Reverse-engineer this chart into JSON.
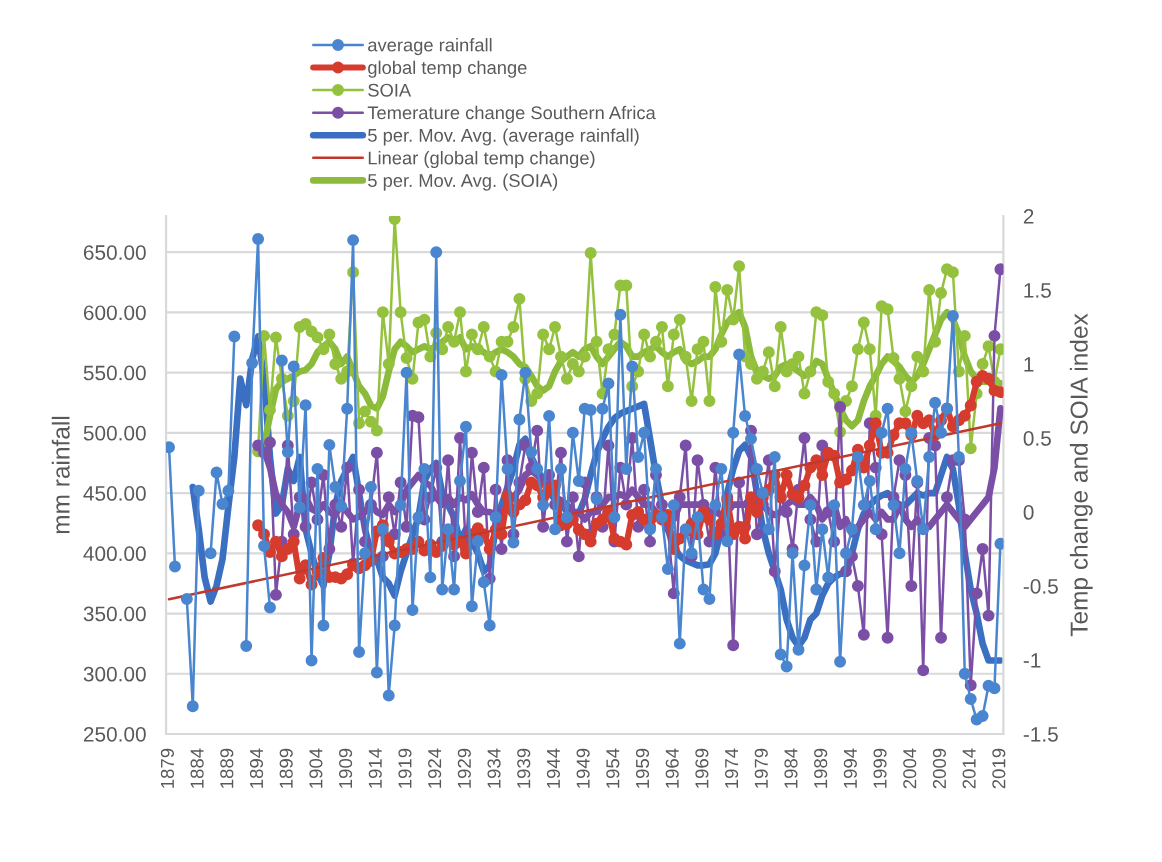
{
  "chart_data": {
    "type": "line",
    "ylabel": "mm rainfall",
    "y2label": "Temp change and SOIA index",
    "grid": "y",
    "legend": "top",
    "x": [
      1879,
      1880,
      1881,
      1882,
      1883,
      1884,
      1885,
      1886,
      1887,
      1888,
      1889,
      1890,
      1891,
      1892,
      1893,
      1894,
      1895,
      1896,
      1897,
      1898,
      1899,
      1900,
      1901,
      1902,
      1903,
      1904,
      1905,
      1906,
      1907,
      1908,
      1909,
      1910,
      1911,
      1912,
      1913,
      1914,
      1915,
      1916,
      1917,
      1918,
      1919,
      1920,
      1921,
      1922,
      1923,
      1924,
      1925,
      1926,
      1927,
      1928,
      1929,
      1930,
      1931,
      1932,
      1933,
      1934,
      1935,
      1936,
      1937,
      1938,
      1939,
      1940,
      1941,
      1942,
      1943,
      1944,
      1945,
      1946,
      1947,
      1948,
      1949,
      1950,
      1951,
      1952,
      1953,
      1954,
      1955,
      1956,
      1957,
      1958,
      1959,
      1960,
      1961,
      1962,
      1963,
      1964,
      1965,
      1966,
      1967,
      1968,
      1969,
      1970,
      1971,
      1972,
      1973,
      1974,
      1975,
      1976,
      1977,
      1978,
      1979,
      1980,
      1981,
      1982,
      1983,
      1984,
      1985,
      1986,
      1987,
      1988,
      1989,
      1990,
      1991,
      1992,
      1993,
      1994,
      1995,
      1996,
      1997,
      1998,
      1999,
      2000,
      2001,
      2002,
      2003,
      2004,
      2005,
      2006,
      2007,
      2008,
      2009,
      2010,
      2011,
      2012,
      2013,
      2014,
      2015,
      2016,
      2017,
      2018,
      2019
    ],
    "xlim": [
      1878.5,
      2019.5
    ],
    "xticks": [
      1879,
      1884,
      1889,
      1894,
      1899,
      1904,
      1909,
      1914,
      1919,
      1924,
      1929,
      1934,
      1939,
      1944,
      1949,
      1954,
      1959,
      1964,
      1969,
      1974,
      1979,
      1984,
      1989,
      1994,
      1999,
      2004,
      2009,
      2014,
      2019
    ],
    "ylim": [
      250,
      680
    ],
    "yticks": [
      {
        "value": 250,
        "label": "250.00"
      },
      {
        "value": 300,
        "label": "300.00"
      },
      {
        "value": 350,
        "label": "350.00"
      },
      {
        "value": 400,
        "label": "400.00"
      },
      {
        "value": 450,
        "label": "450.00"
      },
      {
        "value": 500,
        "label": "500.00"
      },
      {
        "value": 550,
        "label": "550.00"
      },
      {
        "value": 600,
        "label": "600.00"
      },
      {
        "value": 650,
        "label": "650.00"
      }
    ],
    "y2lim": [
      -1.5,
      2
    ],
    "y2ticks": [
      -1.5,
      -1,
      -0.5,
      0,
      0.5,
      1,
      1.5,
      2
    ],
    "series": [
      {
        "name": "average rainfall",
        "color": "#4a86cf",
        "marker": "circle",
        "values": [
          488,
          389,
          null,
          362,
          273,
          452,
          null,
          400,
          467,
          441,
          452,
          580,
          null,
          323,
          558,
          661,
          406,
          355,
          null,
          560,
          484,
          555,
          438,
          523,
          311,
          470,
          340,
          490,
          455,
          439,
          520,
          660,
          318,
          400,
          455,
          301,
          420,
          282,
          340,
          440,
          550,
          353,
          430,
          470,
          380,
          650,
          370,
          420,
          370,
          460,
          505,
          356,
          410,
          376,
          340,
          430,
          548,
          470,
          409,
          511,
          550,
          484,
          470,
          440,
          514,
          420,
          470,
          430,
          500,
          460,
          520,
          519,
          445,
          520,
          541,
          430,
          598,
          470,
          555,
          480,
          500,
          420,
          470,
          430,
          387,
          440,
          325,
          420,
          400,
          430,
          370,
          362,
          440,
          470,
          410,
          500,
          565,
          514,
          495,
          470,
          450,
          420,
          480,
          316,
          306,
          400,
          320,
          390,
          440,
          370,
          420,
          380,
          440,
          310,
          400,
          420,
          480,
          440,
          460,
          420,
          500,
          520,
          440,
          400,
          470,
          500,
          460,
          420,
          480,
          525,
          500,
          520,
          597,
          480,
          300,
          279,
          262,
          265,
          290,
          288,
          408
        ]
      },
      {
        "name": "global temp change",
        "color": "#d63c2e",
        "marker": "circle",
        "axis": "y2",
        "values": [
          null,
          null,
          null,
          null,
          null,
          null,
          null,
          null,
          null,
          null,
          null,
          null,
          null,
          null,
          null,
          -0.09,
          -0.15,
          -0.27,
          -0.2,
          -0.3,
          -0.25,
          -0.2,
          -0.45,
          -0.36,
          -0.49,
          -0.4,
          -0.31,
          -0.44,
          -0.44,
          -0.45,
          -0.42,
          -0.36,
          -0.38,
          -0.36,
          -0.33,
          -0.13,
          -0.09,
          -0.2,
          -0.28,
          -0.27,
          -0.25,
          -0.25,
          -0.2,
          -0.26,
          -0.22,
          -0.27,
          -0.23,
          -0.15,
          -0.22,
          -0.2,
          -0.28,
          -0.15,
          -0.11,
          -0.15,
          -0.25,
          -0.12,
          -0.15,
          0.11,
          0.0,
          0.05,
          0.08,
          0.2,
          0.18,
          0.1,
          0.15,
          0.18,
          -0.09,
          -0.08,
          -0.05,
          -0.12,
          -0.15,
          -0.2,
          -0.08,
          -0.05,
          0.0,
          -0.18,
          -0.2,
          -0.22,
          -0.02,
          0.0,
          -0.05,
          -0.1,
          -0.02,
          -0.05,
          -0.02,
          -0.25,
          -0.18,
          -0.13,
          -0.08,
          -0.15,
          0.0,
          -0.05,
          -0.15,
          -0.08,
          0.08,
          -0.15,
          -0.1,
          -0.18,
          0.1,
          0.0,
          0.1,
          0.15,
          0.25,
          0.1,
          0.25,
          0.12,
          0.1,
          0.18,
          0.3,
          0.35,
          0.25,
          0.4,
          0.38,
          0.2,
          0.22,
          0.28,
          0.42,
          0.3,
          0.45,
          0.6,
          0.4,
          0.4,
          0.52,
          0.6,
          0.6,
          0.52,
          0.65,
          0.6,
          0.62,
          0.52,
          0.62,
          0.7,
          0.58,
          0.62,
          0.65,
          0.72,
          0.88,
          0.92,
          0.9,
          0.82,
          0.81
        ]
      },
      {
        "name": "SOIA",
        "color": "#94c13e",
        "marker": "circle",
        "axis": "y2",
        "values": [
          null,
          null,
          null,
          null,
          null,
          null,
          null,
          null,
          null,
          null,
          null,
          null,
          null,
          null,
          null,
          0.41,
          1.19,
          0.69,
          1.18,
          0.9,
          0.65,
          0.75,
          1.25,
          1.27,
          1.22,
          1.18,
          1.1,
          1.2,
          1.0,
          0.9,
          0.95,
          1.62,
          0.6,
          0.68,
          0.61,
          0.55,
          1.35,
          1.0,
          1.98,
          1.35,
          1.04,
          0.9,
          1.28,
          1.3,
          1.05,
          1.21,
          1.1,
          1.25,
          1.15,
          1.35,
          0.95,
          1.2,
          1.1,
          1.25,
          1.05,
          0.95,
          1.15,
          1.15,
          1.25,
          1.44,
          0.9,
          0.75,
          0.8,
          1.2,
          1.1,
          1.25,
          1.05,
          0.9,
          1.0,
          0.95,
          1.05,
          1.75,
          1.15,
          0.8,
          1.1,
          1.2,
          1.53,
          1.53,
          0.85,
          0.95,
          1.2,
          1.05,
          1.15,
          1.25,
          0.85,
          1.2,
          1.3,
          1.05,
          0.75,
          1.1,
          1.15,
          0.75,
          1.52,
          1.15,
          1.5,
          1.3,
          1.66,
          1.05,
          1.0,
          0.9,
          0.95,
          1.08,
          0.85,
          1.25,
          0.95,
          1.0,
          1.05,
          0.8,
          0.95,
          1.35,
          1.33,
          0.88,
          0.8,
          0.54,
          0.75,
          0.85,
          1.1,
          1.28,
          1.1,
          0.65,
          1.39,
          1.37,
          1.04,
          0.9,
          0.68,
          0.85,
          1.05,
          0.95,
          1.5,
          1.15,
          1.48,
          1.64,
          1.62,
          0.95,
          1.19,
          0.43,
          0.8,
          1.0,
          1.12,
          0.88,
          1.1
        ]
      },
      {
        "name": "Temerature change Southern Africa",
        "color": "#7b4fa6",
        "marker": "circle",
        "axis": "y2",
        "values": [
          null,
          null,
          null,
          null,
          null,
          null,
          null,
          null,
          null,
          null,
          null,
          null,
          null,
          null,
          null,
          0.45,
          0.4,
          0.47,
          -0.56,
          -0.2,
          0.45,
          -0.15,
          0.1,
          -0.1,
          0.2,
          -0.05,
          0.25,
          -0.25,
          0.05,
          -0.1,
          0.3,
          -0.35,
          0.15,
          -0.2,
          0.05,
          0.4,
          -0.3,
          0.1,
          -0.15,
          0.2,
          -0.1,
          0.65,
          0.64,
          -0.05,
          0.1,
          0.3,
          -0.2,
          0.35,
          -0.3,
          0.5,
          -0.25,
          0.4,
          0.0,
          0.3,
          -0.45,
          0.15,
          -0.25,
          0.35,
          -0.15,
          0.2,
          0.45,
          0.3,
          0.55,
          -0.1,
          0.25,
          0.05,
          0.4,
          -0.2,
          0.1,
          -0.3,
          0.2,
          -0.15,
          0.1,
          -0.1,
          0.45,
          -0.2,
          0.3,
          0.05,
          0.5,
          -0.1,
          0.15,
          -0.2,
          0.25,
          0.05,
          -0.1,
          -0.55,
          0.1,
          0.45,
          -0.3,
          0.35,
          0.05,
          -0.2,
          0.3,
          -0.15,
          0.1,
          -0.9,
          0.2,
          -0.1,
          0.55,
          -0.15,
          0.05,
          0.35,
          -0.4,
          0.1,
          0.0,
          -0.25,
          0.15,
          0.5,
          -0.05,
          -0.2,
          0.45,
          0.0,
          -0.2,
          0.71,
          -0.4,
          -0.3,
          -0.5,
          -0.83,
          0.6,
          0.3,
          -0.15,
          -0.85,
          0.1,
          0.35,
          0.25,
          -0.5,
          0.2,
          -1.07,
          0.5,
          0.45,
          -0.85,
          0.1,
          0.35,
          0.35,
          -0.05,
          -1.17,
          -0.55,
          -0.25,
          -0.7,
          1.19,
          1.64
        ]
      },
      {
        "name": "5 per. Mov. Avg. (average rainfall)",
        "color": "#3b6fc2",
        "marker": "none",
        "values": [
          null,
          null,
          null,
          null,
          455,
          420,
          380,
          360,
          373,
          395,
          439,
          480,
          545,
          523,
          561,
          580,
          545,
          480,
          433,
          440,
          470,
          460,
          480,
          420,
          400,
          383,
          373,
          400,
          440,
          460,
          470,
          480,
          450,
          420,
          400,
          395,
          380,
          375,
          365,
          385,
          400,
          415,
          430,
          460,
          470,
          475,
          450,
          440,
          430,
          410,
          420,
          410,
          400,
          385,
          390,
          420,
          440,
          455,
          470,
          490,
          495,
          480,
          470,
          460,
          450,
          445,
          440,
          435,
          433,
          433,
          445,
          465,
          483,
          495,
          505,
          512,
          516,
          518,
          520,
          522,
          524,
          495,
          465,
          440,
          420,
          405,
          398,
          394,
          392,
          390,
          390,
          391,
          400,
          420,
          450,
          470,
          485,
          490,
          480,
          450,
          420,
          400,
          385,
          370,
          345,
          330,
          323,
          330,
          345,
          350,
          365,
          375,
          380,
          383,
          383,
          400,
          420,
          433,
          440,
          445,
          448,
          450,
          445,
          440,
          440,
          445,
          450,
          448,
          450,
          450,
          465,
          480,
          470,
          440,
          400,
          370,
          350,
          325,
          311,
          311,
          311
        ]
      },
      {
        "name": "Linear (global temp change)",
        "color": "#c0392b",
        "marker": "none",
        "axis": "y2",
        "x": [
          1879,
          2019
        ],
        "values": [
          -0.59,
          0.6
        ]
      },
      {
        "name": "5 per. Mov. Avg. (SOIA)",
        "color": "#8cbb3c",
        "marker": "none",
        "axis": "y2",
        "values": [
          null,
          null,
          null,
          null,
          null,
          null,
          null,
          null,
          null,
          null,
          null,
          null,
          null,
          null,
          null,
          null,
          0.45,
          0.65,
          0.83,
          0.88,
          0.9,
          0.92,
          0.95,
          0.96,
          1.0,
          1.08,
          1.12,
          1.15,
          1.1,
          1.0,
          1.05,
          0.95,
          0.85,
          0.8,
          0.72,
          0.7,
          0.78,
          0.95,
          1.1,
          1.15,
          1.12,
          1.08,
          1.1,
          1.12,
          1.1,
          1.12,
          1.15,
          1.18,
          1.15,
          1.18,
          1.1,
          1.12,
          1.1,
          1.08,
          1.05,
          1.08,
          1.1,
          1.08,
          1.05,
          1.0,
          0.98,
          0.92,
          0.85,
          0.82,
          0.85,
          0.95,
          1.02,
          1.05,
          1.08,
          1.05,
          1.1,
          1.12,
          1.05,
          1.0,
          1.05,
          1.1,
          1.15,
          1.12,
          1.05,
          1.05,
          1.08,
          1.1,
          1.12,
          1.08,
          1.05,
          1.08,
          1.1,
          1.02,
          1.0,
          1.02,
          1.05,
          1.05,
          1.1,
          1.2,
          1.28,
          1.32,
          1.35,
          1.25,
          1.05,
          0.95,
          0.92,
          0.9,
          0.92,
          0.98,
          1.0,
          0.98,
          0.95,
          0.92,
          0.95,
          1.02,
          1.0,
          0.9,
          0.8,
          0.7,
          0.62,
          0.58,
          0.62,
          0.75,
          0.85,
          0.92,
          1.0,
          1.05,
          1.02,
          0.98,
          0.92,
          0.88,
          0.92,
          1.0,
          1.1,
          1.2,
          1.3,
          1.35,
          1.3,
          1.2,
          1.05,
          0.95,
          0.9,
          0.88,
          0.88,
          0.85,
          0.87
        ]
      },
      {
        "color": "#7b4fa6",
        "marker": "none",
        "axis": "y2",
        "values": [
          null,
          null,
          null,
          null,
          null,
          null,
          null,
          null,
          null,
          null,
          null,
          null,
          null,
          null,
          null,
          null,
          0.42,
          0.3,
          0.12,
          0.05,
          0.0,
          -0.1,
          0.05,
          0.1,
          0.02,
          0.0,
          0.05,
          0.0,
          -0.02,
          0.05,
          0.0,
          -0.05,
          -0.03,
          0.0,
          0.05,
          0.0,
          -0.02,
          0.05,
          0.0,
          0.05,
          0.15,
          0.2,
          0.25,
          0.2,
          0.18,
          0.1,
          0.05,
          0.1,
          0.05,
          0.1,
          0.08,
          0.12,
          0.05,
          0.0,
          0.0,
          -0.02,
          0.0,
          0.05,
          0.1,
          0.15,
          0.25,
          0.28,
          0.25,
          0.2,
          0.18,
          0.1,
          0.08,
          0.05,
          0.0,
          0.0,
          -0.05,
          0.0,
          0.0,
          0.05,
          0.1,
          0.1,
          0.12,
          0.1,
          0.15,
          0.1,
          0.05,
          0.05,
          0.0,
          -0.05,
          -0.05,
          -0.05,
          0.05,
          0.05,
          0.05,
          0.05,
          0.05,
          0.0,
          0.0,
          -0.02,
          0.0,
          0.05,
          0.05,
          0.05,
          0.1,
          0.08,
          0.05,
          0.0,
          -0.02,
          0.0,
          0.05,
          0.08,
          0.05,
          0.05,
          0.1,
          0.05,
          -0.05,
          0.0,
          0.05,
          -0.1,
          -0.05,
          -0.15,
          -0.1,
          -0.05,
          0.0,
          -0.05,
          0.0,
          -0.05,
          -0.05,
          0.05,
          -0.05,
          -0.1,
          -0.05,
          -0.1,
          -0.1,
          -0.05,
          0.0,
          0.05,
          0.0,
          -0.05,
          -0.1,
          -0.05,
          0.0,
          0.05,
          0.1,
          0.3,
          0.7
        ]
      }
    ]
  }
}
